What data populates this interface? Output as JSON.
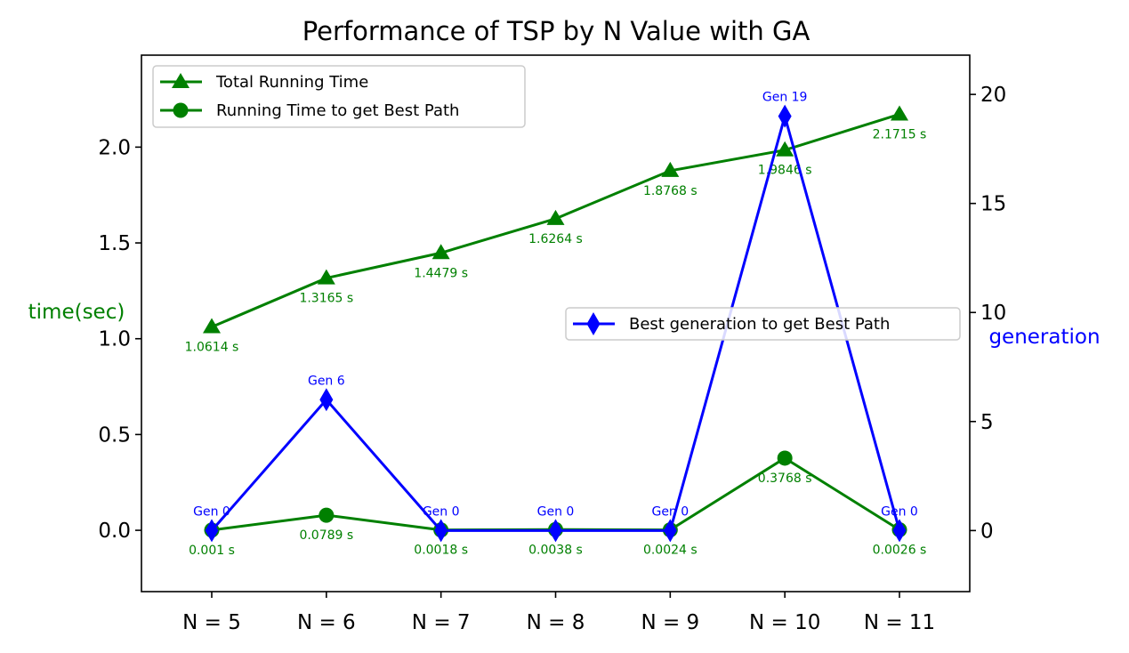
{
  "chart_data": {
    "type": "line",
    "title": "Performance of TSP by N Value with GA",
    "categories": [
      "N = 5",
      "N = 6",
      "N = 7",
      "N = 8",
      "N = 9",
      "N = 10",
      "N = 11"
    ],
    "y_left": {
      "label": "time(sec)",
      "label_color": "#008000",
      "ylim": [
        -0.32,
        2.48
      ],
      "ticks": [
        0.0,
        0.5,
        1.0,
        1.5,
        2.0
      ],
      "tick_labels": [
        "0.0",
        "0.5",
        "1.0",
        "1.5",
        "2.0"
      ]
    },
    "y_right": {
      "label": "generation",
      "label_color": "#0000ff",
      "ylim": [
        -2.8,
        21.8
      ],
      "ticks": [
        0,
        5,
        10,
        15,
        20
      ],
      "tick_labels": [
        "0",
        "5",
        "10",
        "15",
        "20"
      ]
    },
    "series": [
      {
        "name": "Total Running Time",
        "axis": "left",
        "color": "#008000",
        "marker": "triangle",
        "values": [
          1.0614,
          1.3165,
          1.4479,
          1.6264,
          1.8768,
          1.9846,
          2.1715
        ],
        "labels": [
          "1.0614 s",
          "1.3165 s",
          "1.4479 s",
          "1.6264 s",
          "1.8768 s",
          "1.9846 s",
          "2.1715 s"
        ]
      },
      {
        "name": "Running Time to get Best Path",
        "axis": "left",
        "color": "#008000",
        "marker": "circle",
        "values": [
          0.001,
          0.0789,
          0.0018,
          0.0038,
          0.0024,
          0.3768,
          0.0026
        ],
        "labels": [
          "0.001 s",
          "0.0789 s",
          "0.0018 s",
          "0.0038 s",
          "0.0024 s",
          "0.3768 s",
          "0.0026 s"
        ]
      },
      {
        "name": "Best generation to get Best Path",
        "axis": "right",
        "color": "#0000ff",
        "marker": "diamond",
        "values": [
          0,
          6,
          0,
          0,
          0,
          19,
          0
        ],
        "labels": [
          "Gen 0",
          "Gen 6",
          "Gen 0",
          "Gen 0",
          "Gen 0",
          "Gen 19",
          "Gen 0"
        ]
      }
    ],
    "legends": [
      {
        "placement": "upper-left",
        "entries": [
          "Total Running Time",
          "Running Time to get Best Path"
        ]
      },
      {
        "placement": "center-right",
        "entries": [
          "Best generation to get Best Path"
        ]
      }
    ],
    "grid": false
  }
}
